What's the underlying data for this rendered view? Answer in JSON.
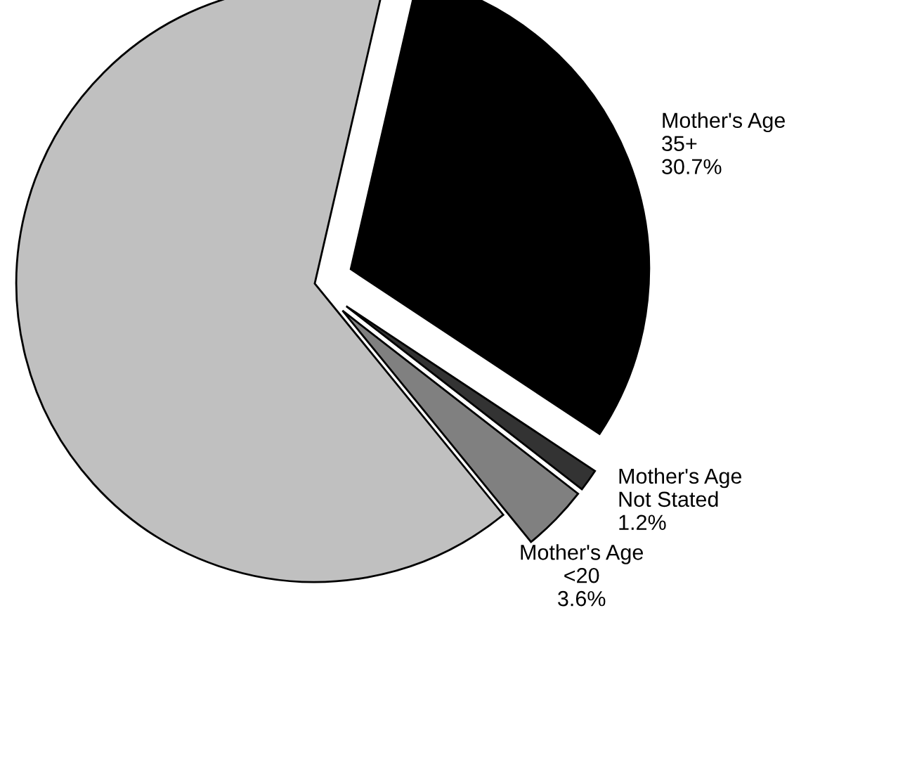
{
  "chart_data": {
    "type": "pie",
    "categories": [
      "Mother's Age\n35+",
      "Mother's Age\nNot Stated",
      "Mother's Age\n<20",
      null
    ],
    "values": [
      30.7,
      1.2,
      3.6,
      64.5
    ],
    "value_labels": [
      "30.7%",
      "1.2%",
      "3.6%",
      null
    ],
    "colors": [
      "#000000",
      "#333333",
      "#808080",
      "#c0c0c0"
    ],
    "legend": false
  }
}
